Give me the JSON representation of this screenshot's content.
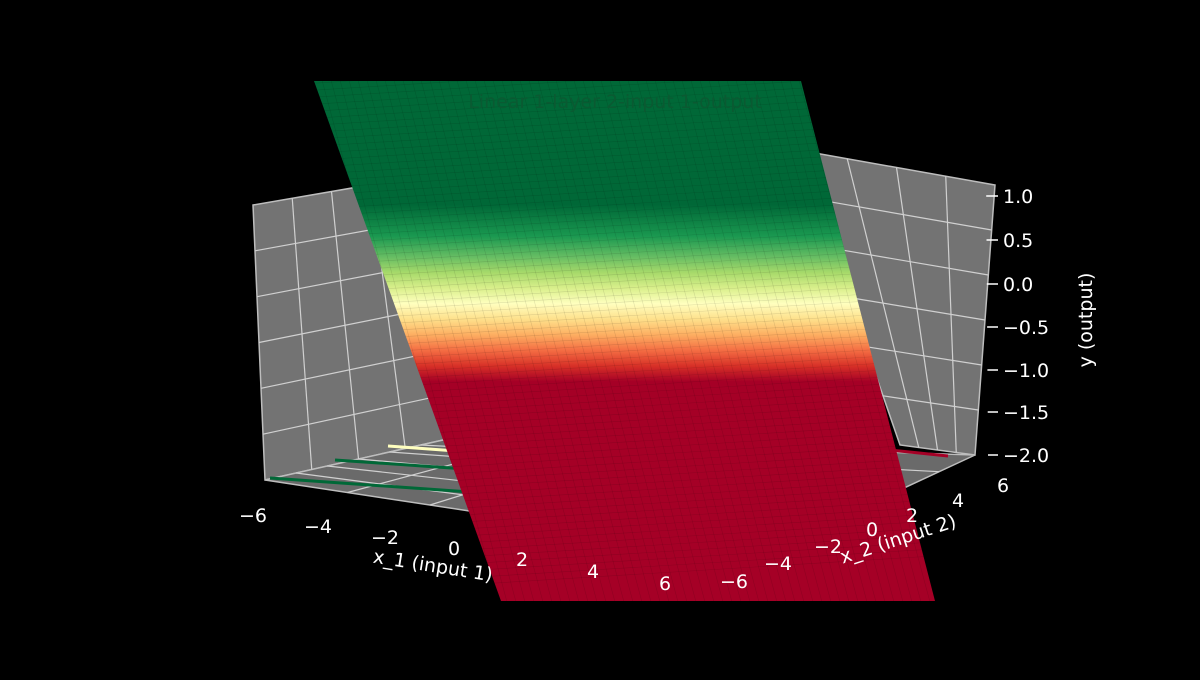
{
  "chart_data": {
    "type": "surface",
    "title": "Linear 1-layer 2-input 1-output",
    "xlabel": "x_1 (input 1)",
    "ylabel": "x_2 (input 2)",
    "zlabel": "y (output)",
    "xlim": [
      -6,
      6
    ],
    "ylim": [
      -6,
      6
    ],
    "zlim": [
      -2.0,
      1.0
    ],
    "x_ticks": [
      "−6",
      "−4",
      "−2",
      "0",
      "2",
      "4",
      "6"
    ],
    "y_ticks": [
      "−6",
      "−4",
      "−2",
      "0",
      "2",
      "4",
      "6"
    ],
    "z_ticks": [
      "−2.0",
      "−1.5",
      "−1.0",
      "−0.5",
      "0.0",
      "0.5",
      "1.0"
    ],
    "colormap": "RdYlGn",
    "background_color": "#000000",
    "pane_color": "#737373",
    "grid": true,
    "surface_z_range": [
      -1.0,
      1.0
    ],
    "x1_gradient_direction": "high x_1 maps to low y"
  }
}
